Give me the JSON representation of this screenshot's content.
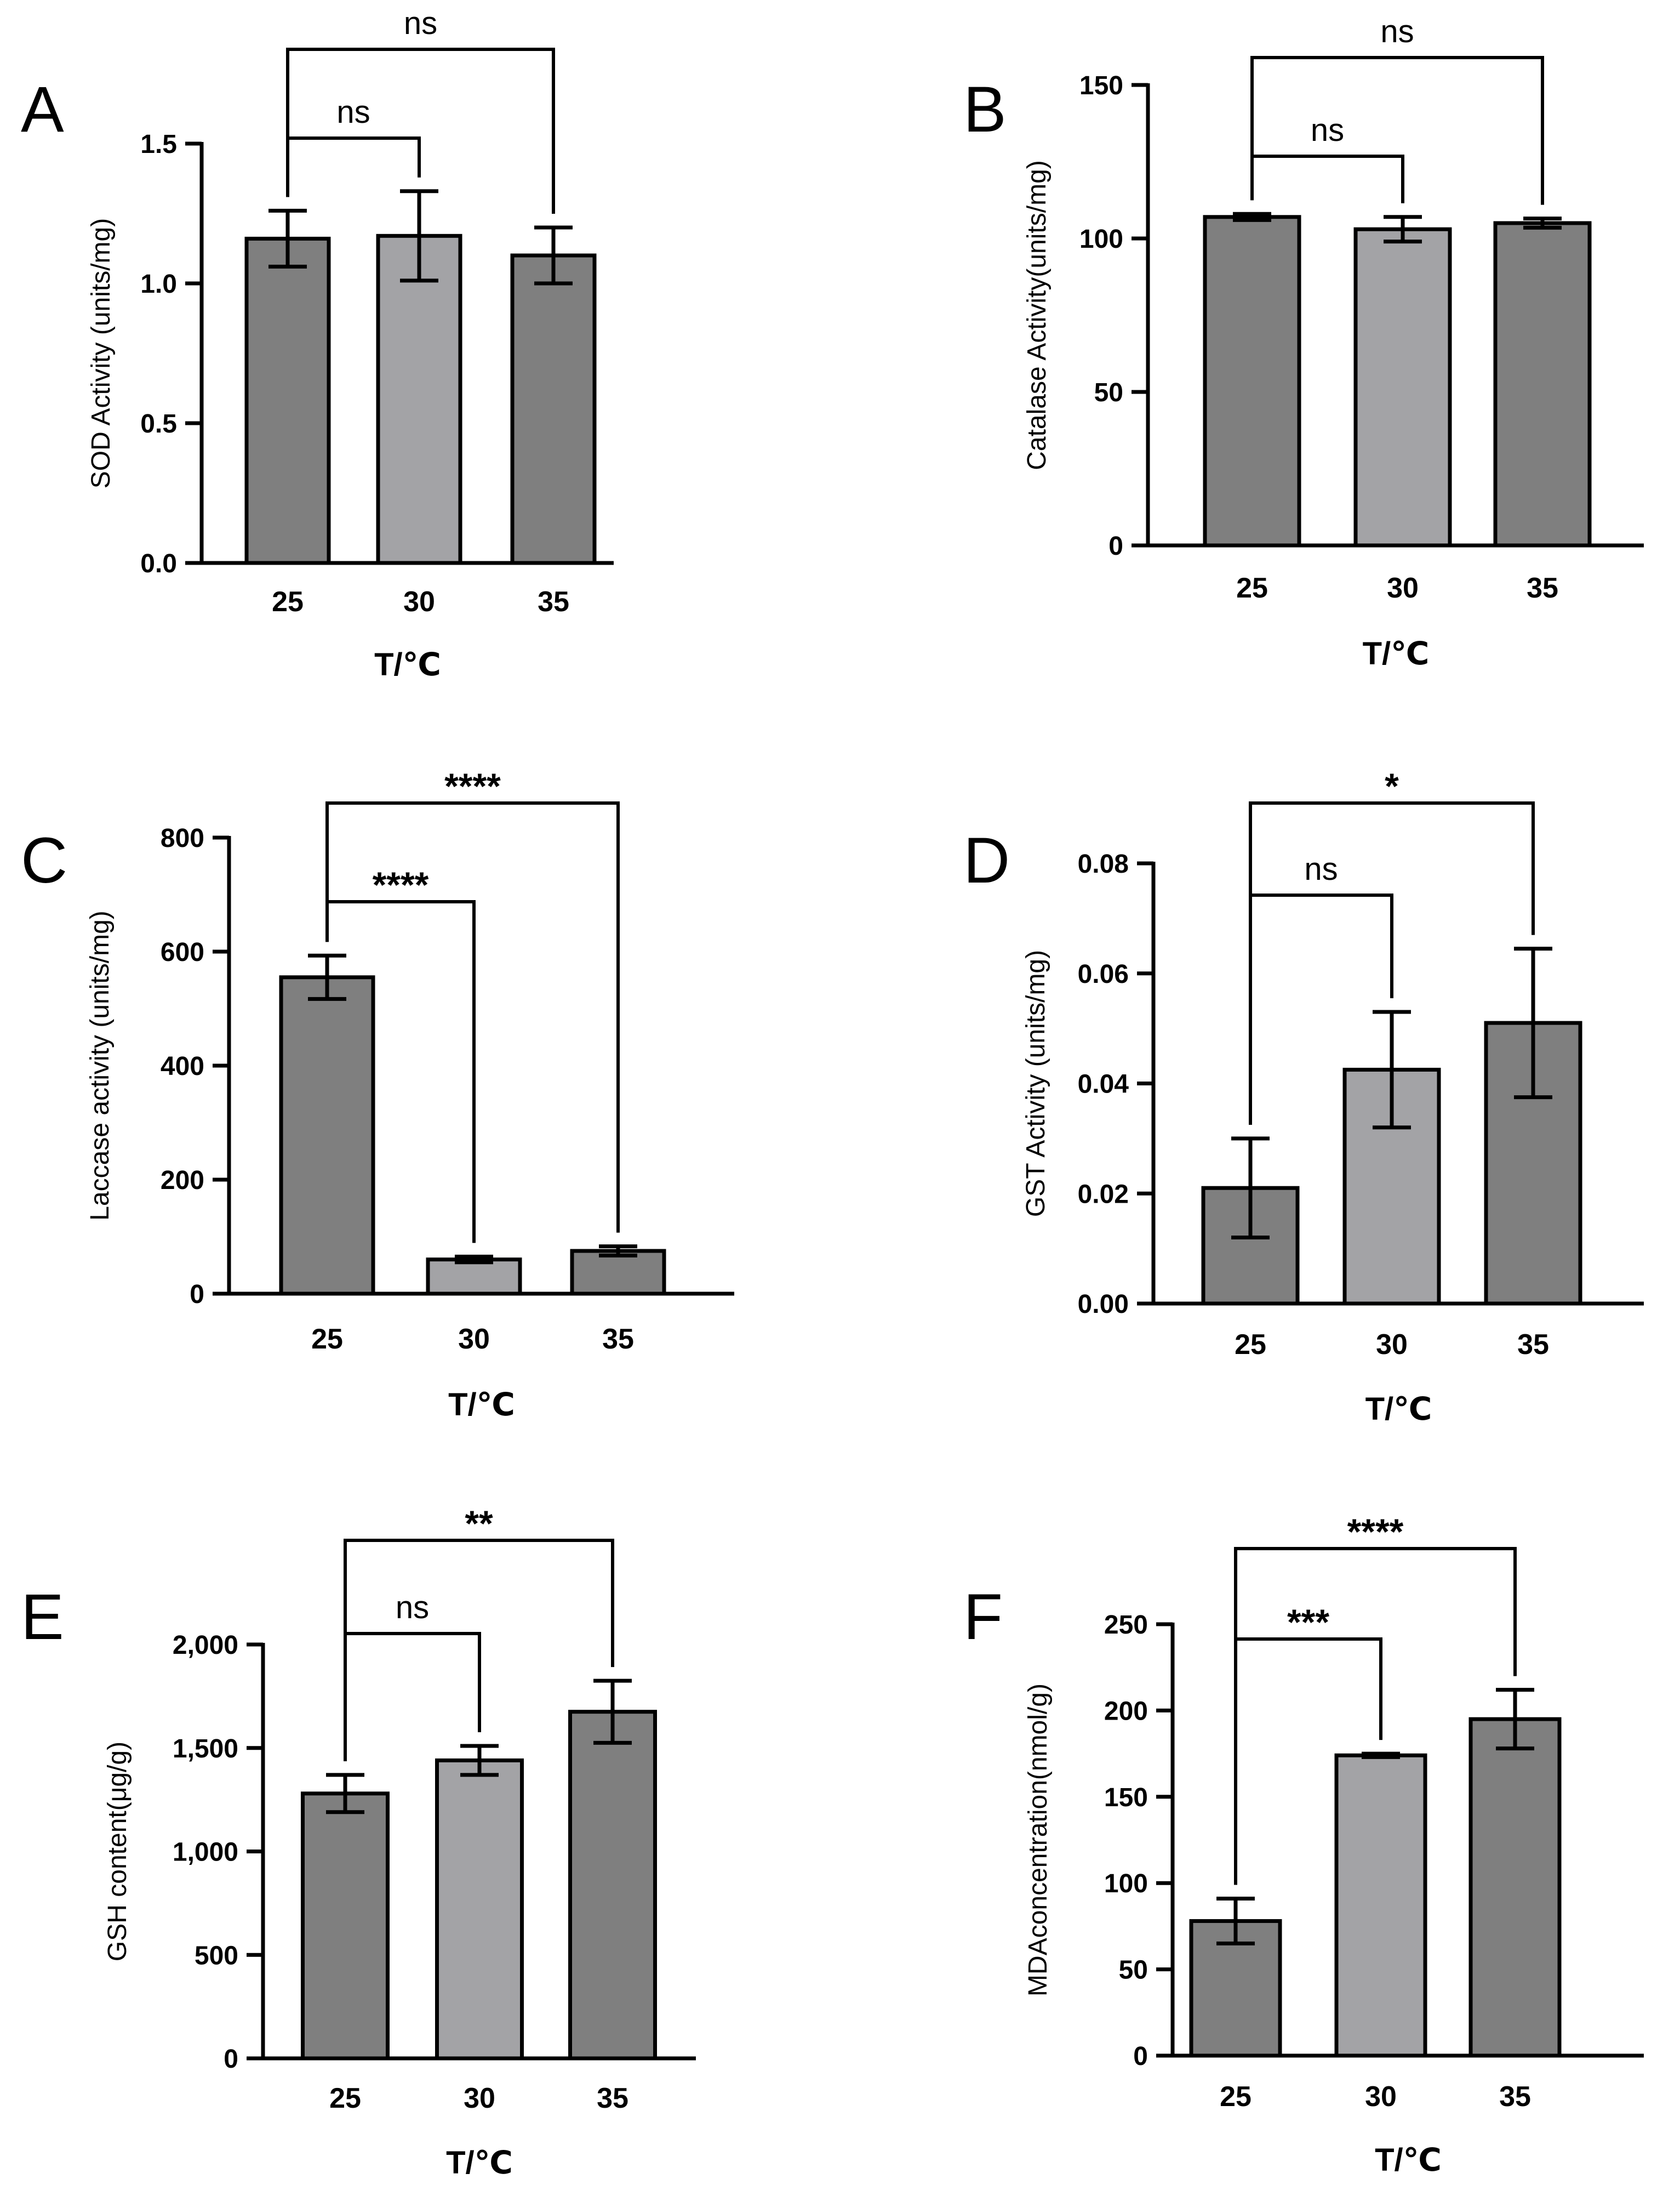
{
  "figure": {
    "bar_colors": {
      "25": "#7f7f7f",
      "30": "#a3a3a6",
      "35": "#7f7f7f"
    },
    "axis_color": "#000000"
  },
  "chart_data": [
    {
      "panel": "A",
      "type": "bar",
      "categories": [
        "25",
        "30",
        "35"
      ],
      "values": [
        1.16,
        1.17,
        1.1
      ],
      "errors": [
        0.1,
        0.16,
        0.1
      ],
      "ylim": [
        0,
        1.5
      ],
      "yticks": [
        "0.0",
        "0.5",
        "1.0",
        "1.5"
      ],
      "ytick_values": [
        0,
        0.5,
        1.0,
        1.5
      ],
      "xlabel": "T/℃",
      "ylabel": "SOD Activity (units/mg)",
      "significance": [
        {
          "from": "25",
          "to": "30",
          "label": "ns"
        },
        {
          "from": "25",
          "to": "35",
          "label": "ns"
        }
      ]
    },
    {
      "panel": "B",
      "type": "bar",
      "categories": [
        "25",
        "30",
        "35"
      ],
      "values": [
        107,
        103,
        105
      ],
      "errors": [
        1,
        4,
        1.5
      ],
      "ylim": [
        0,
        150
      ],
      "yticks": [
        "0",
        "50",
        "100",
        "150"
      ],
      "ytick_values": [
        0,
        50,
        100,
        150
      ],
      "xlabel": "T/℃",
      "ylabel": "Catalase Activity(units/mg)",
      "significance": [
        {
          "from": "25",
          "to": "30",
          "label": "ns"
        },
        {
          "from": "25",
          "to": "35",
          "label": "ns"
        }
      ]
    },
    {
      "panel": "C",
      "type": "bar",
      "categories": [
        "25",
        "30",
        "35"
      ],
      "values": [
        555,
        60,
        75
      ],
      "errors": [
        38,
        5,
        8
      ],
      "ylim": [
        0,
        800
      ],
      "yticks": [
        "0",
        "200",
        "400",
        "600",
        "800"
      ],
      "ytick_values": [
        0,
        200,
        400,
        600,
        800
      ],
      "xlabel": "T/℃",
      "ylabel": "Laccase activity (units/mg)",
      "significance": [
        {
          "from": "25",
          "to": "30",
          "label": "****"
        },
        {
          "from": "25",
          "to": "35",
          "label": "****"
        }
      ]
    },
    {
      "panel": "D",
      "type": "bar",
      "categories": [
        "25",
        "30",
        "35"
      ],
      "values": [
        0.021,
        0.0425,
        0.051
      ],
      "errors": [
        0.009,
        0.0105,
        0.0135
      ],
      "ylim": [
        0,
        0.08
      ],
      "yticks": [
        "0.00",
        "0.02",
        "0.04",
        "0.06",
        "0.08"
      ],
      "ytick_values": [
        0,
        0.02,
        0.04,
        0.06,
        0.08
      ],
      "xlabel": "T/℃",
      "ylabel": "GST Activity (units/mg)",
      "significance": [
        {
          "from": "25",
          "to": "30",
          "label": "ns"
        },
        {
          "from": "25",
          "to": "35",
          "label": "*"
        }
      ]
    },
    {
      "panel": "E",
      "type": "bar",
      "categories": [
        "25",
        "30",
        "35"
      ],
      "values": [
        1280,
        1440,
        1675
      ],
      "errors": [
        90,
        70,
        150
      ],
      "ylim": [
        0,
        2000
      ],
      "yticks": [
        "0",
        "500",
        "1,000",
        "1,500",
        "2,000"
      ],
      "ytick_values": [
        0,
        500,
        1000,
        1500,
        2000
      ],
      "xlabel": "T/℃",
      "ylabel": "GSH content(μg/g)",
      "significance": [
        {
          "from": "25",
          "to": "30",
          "label": "ns"
        },
        {
          "from": "25",
          "to": "35",
          "label": "**"
        }
      ]
    },
    {
      "panel": "F",
      "type": "bar",
      "categories": [
        "25",
        "30",
        "35"
      ],
      "values": [
        78,
        174,
        195
      ],
      "errors": [
        13,
        1,
        17
      ],
      "ylim": [
        0,
        250
      ],
      "yticks": [
        "0",
        "50",
        "100",
        "150",
        "200",
        "250"
      ],
      "ytick_values": [
        0,
        50,
        100,
        150,
        200,
        250
      ],
      "xlabel": "T/℃",
      "ylabel": "MDAconcentration(nmol/g)",
      "significance": [
        {
          "from": "25",
          "to": "30",
          "label": "***"
        },
        {
          "from": "25",
          "to": "35",
          "label": "****"
        }
      ]
    }
  ]
}
